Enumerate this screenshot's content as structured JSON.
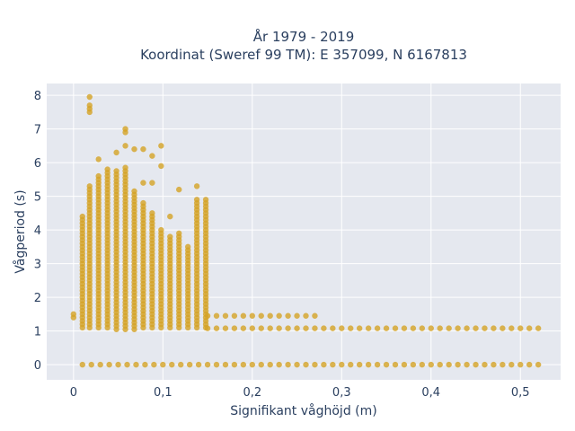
{
  "chart_data": {
    "type": "scatter",
    "title_line1": "År 1979 - 2019",
    "title_line2": "Koordinat (Sweref 99 TM): E 357099, N 6167813",
    "xlabel": "Signifikant våghöjd (m)",
    "ylabel": "Vågperiod (s)",
    "xlim": [
      -0.03,
      0.545
    ],
    "ylim": [
      -0.45,
      8.35
    ],
    "x_ticks": [
      0,
      0.1,
      0.2,
      0.3,
      0.4,
      0.5
    ],
    "x_tick_labels": [
      "0",
      "0,1",
      "0,2",
      "0,3",
      "0,4",
      "0,5"
    ],
    "y_ticks": [
      0,
      1,
      2,
      3,
      4,
      5,
      6,
      7,
      8
    ],
    "y_tick_labels": [
      "0",
      "1",
      "2",
      "3",
      "4",
      "5",
      "6",
      "7",
      "8"
    ],
    "grid": true,
    "marker_color": "#d4a326",
    "background_color": "#e5e8ef",
    "series": [
      {
        "columns": [
          {
            "x": 0.0,
            "ys": [
              1.4,
              1.5
            ]
          },
          {
            "x": 0.01,
            "y_min": 1.1,
            "y_max": 4.4
          },
          {
            "x": 0.018,
            "y_min": 1.1,
            "y_max": 5.3,
            "extra": [
              7.5,
              7.6,
              7.7,
              7.95
            ]
          },
          {
            "x": 0.028,
            "y_min": 1.1,
            "y_max": 5.6,
            "extra": [
              6.1
            ]
          },
          {
            "x": 0.038,
            "y_min": 1.1,
            "y_max": 5.8
          },
          {
            "x": 0.048,
            "y_min": 1.05,
            "y_max": 5.8,
            "extra": [
              6.3
            ]
          },
          {
            "x": 0.058,
            "y_min": 1.05,
            "y_max": 5.9,
            "extra": [
              6.9,
              7.0,
              6.5
            ]
          },
          {
            "x": 0.068,
            "y_min": 1.05,
            "y_max": 5.2,
            "extra": [
              6.4
            ]
          },
          {
            "x": 0.078,
            "y_min": 1.1,
            "y_max": 4.8,
            "extra": [
              6.4,
              5.4
            ]
          },
          {
            "x": 0.088,
            "y_min": 1.1,
            "y_max": 4.5,
            "extra": [
              6.2,
              5.4
            ]
          },
          {
            "x": 0.098,
            "y_min": 1.1,
            "y_max": 4.0,
            "extra": [
              6.5,
              5.9
            ]
          },
          {
            "x": 0.108,
            "y_min": 1.1,
            "y_max": 3.8,
            "extra": [
              4.4
            ]
          },
          {
            "x": 0.118,
            "y_min": 1.1,
            "y_max": 3.9,
            "extra": [
              5.2
            ]
          },
          {
            "x": 0.128,
            "y_min": 1.1,
            "y_max": 3.5
          },
          {
            "x": 0.138,
            "y_min": 1.1,
            "y_max": 4.9,
            "extra": [
              5.3
            ]
          },
          {
            "x": 0.148,
            "y_min": 1.1,
            "y_max": 4.9
          }
        ],
        "row_y0": {
          "y": 0.0,
          "x_from": 0.01,
          "x_to": 0.52,
          "step": 0.01
        },
        "row_y1": {
          "y": 1.08,
          "x_from": 0.15,
          "x_to": 0.52,
          "step": 0.01
        },
        "row_y145": {
          "y": 1.45,
          "x_from": 0.15,
          "x_to": 0.27,
          "step": 0.01
        },
        "value_step": 0.1
      }
    ]
  }
}
